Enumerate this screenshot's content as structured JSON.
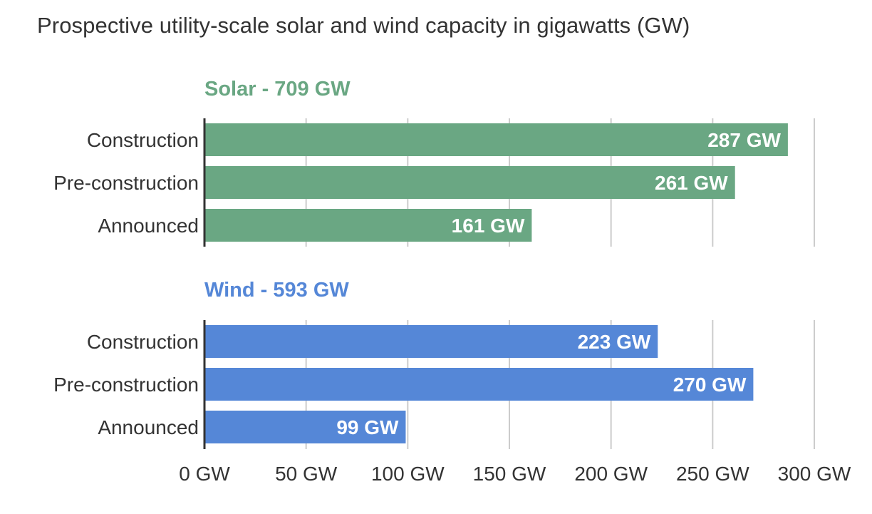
{
  "chart_title": "Prospective utility-scale solar and wind capacity in gigawatts (GW)",
  "chart_data": {
    "type": "bar",
    "orientation": "horizontal",
    "title": "Prospective utility-scale solar and wind capacity in gigawatts (GW)",
    "xlim": [
      0,
      300
    ],
    "grid": true,
    "x_ticks": [
      {
        "value": 0,
        "label": "0 GW"
      },
      {
        "value": 50,
        "label": "50 GW"
      },
      {
        "value": 100,
        "label": "100 GW"
      },
      {
        "value": 150,
        "label": "150 GW"
      },
      {
        "value": 200,
        "label": "200 GW"
      },
      {
        "value": 250,
        "label": "250 GW"
      },
      {
        "value": 300,
        "label": "300 GW"
      }
    ],
    "panels": [
      {
        "name": "Solar",
        "title": "Solar - 709 GW",
        "color": "#6aa783",
        "categories": [
          "Construction",
          "Pre-construction",
          "Announced"
        ],
        "values": [
          287,
          261,
          161
        ],
        "data_labels": [
          "287 GW",
          "261 GW",
          "161 GW"
        ]
      },
      {
        "name": "Wind",
        "title": "Wind - 593 GW",
        "color": "#5587d7",
        "categories": [
          "Construction",
          "Pre-construction",
          "Announced"
        ],
        "values": [
          223,
          270,
          99
        ],
        "data_labels": [
          "223 GW",
          "270 GW",
          "99 GW"
        ]
      }
    ]
  }
}
